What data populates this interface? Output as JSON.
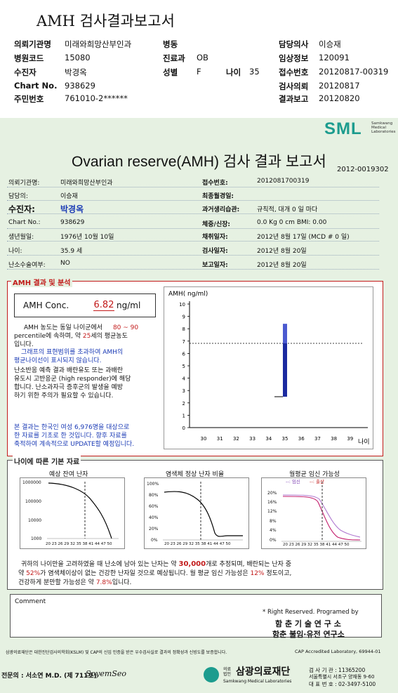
{
  "top_title": "AMH 검사결과보고서",
  "header": {
    "rows": [
      [
        {
          "label": "의뢰기관명",
          "value": "미래와희망산부인과"
        },
        {
          "label": "병동",
          "value": ""
        },
        {
          "label": "담당의사",
          "value": "이승재"
        }
      ],
      [
        {
          "label": "병원코드",
          "value": "15080"
        },
        {
          "label": "진료과",
          "value": "OB"
        },
        {
          "label": "임상정보",
          "value": "120091"
        }
      ],
      [
        {
          "label": "수진자",
          "value": "박경옥"
        },
        {
          "label": "성별",
          "value": "F"
        },
        {
          "label": "접수번호",
          "value": "20120817-00319"
        }
      ],
      [
        {
          "label": "Chart No.",
          "value": "938629"
        },
        {
          "label": "",
          "value": ""
        },
        {
          "label": "검사의뢰",
          "value": "20120817"
        }
      ],
      [
        {
          "label": "주민번호",
          "value": "761010-2******"
        },
        {
          "label": "",
          "value": ""
        },
        {
          "label": "결과보고",
          "value": "20120820"
        }
      ]
    ],
    "age_label": "나이",
    "age_value": "35"
  },
  "report": {
    "logo": "SML",
    "logo_sub": [
      "Samkwang",
      "Medical",
      "Laboratories"
    ],
    "title": "Ovarian reserve(AMH) 검사 결과 보고서",
    "report_no": "2012-0019302",
    "left_info": [
      {
        "label": "의뢰기관명:",
        "value": "미래와희망산부인과"
      },
      {
        "label": "담당의:",
        "value": "이승재"
      },
      {
        "label": "수진자:",
        "value": "박경옥"
      },
      {
        "label": "Chart No.:",
        "value": "938629"
      },
      {
        "label": "생년월일:",
        "value": "1976년 10월 10일"
      },
      {
        "label": "나이:",
        "value": "35.9 세"
      },
      {
        "label": "난소수술여부:",
        "value": "NO"
      }
    ],
    "right_info": [
      {
        "label": "접수번호:",
        "value": "2012081700319"
      },
      {
        "label": "최종월경일:",
        "value": ""
      },
      {
        "label": "과거생리습관:",
        "value": "규칙적, 대개    0 일 마다"
      },
      {
        "label": "체중/신장:",
        "value": "0.0 Kg     0 cm   BMI:   0.00"
      },
      {
        "label": "채취일자:",
        "value": "2012년 8월 17일   (MCD # 0 일)"
      },
      {
        "label": "검사일자:",
        "value": "2012년 8월 20일"
      },
      {
        "label": "보고일자:",
        "value": "2012년 8월 20일"
      }
    ],
    "amh_section_label": "AMH 결과 및 분석",
    "amh_conc_label": "AMH Conc.",
    "amh_conc_value": "6.82",
    "amh_conc_unit": "ng/ml",
    "analysis": {
      "p1_a": "AMH 농도는 동일 나이군에서",
      "p1_range": "80 ~ 90",
      "p1_b": "percentile에 속하며, 약",
      "p1_age": "25",
      "p1_c": "세의 평균농도",
      "p1_d": "입니다.",
      "p2_1": "그래프의 표현범위를 초과하여 AMH의",
      "p2_2": "평균나이선이 표시되지 않습니다.",
      "p3": [
        "난소반응 예측 결과 배란유도 또는 과배란",
        "유도시 고반응군 (high responder)에 해당",
        "합니다. 난소과자극 증후군의 발생을 예방",
        "하기 위한 주의가 필요할 수 있습니다."
      ],
      "p4": [
        "본 결과는 한국인 여성 6,976명을 대상으로",
        "한 자료를 기초로 한 것입니다. 향후 자료를",
        "축적하여 계속적으로 UPDATE할 예정입니다."
      ]
    },
    "age_section_label": "나이에 따른 기본 자료",
    "mini_titles": [
      "예상 잔여 난자",
      "염색체 정상 난자 비율",
      "월평균 임신 가능성"
    ],
    "mini1_ticks": [
      "1000000",
      "100000",
      "10000",
      "1000"
    ],
    "mini2_ticks": [
      "100%",
      "80%",
      "60%",
      "40%",
      "20%",
      "0%"
    ],
    "mini3_ticks": [
      "20%",
      "16%",
      "12%",
      "8%",
      "4%",
      "0%"
    ],
    "mini_xticks": "20 23 26 29 32 35 38 41 44 47 50",
    "mini3_legend_a": "--: 임신",
    "mini3_legend_b": "--: 출산",
    "summary": {
      "l1_a": "귀하의 나이만을 고려하였을 때 난소에 남아 있는 난자는 약",
      "l1_num": "30,000",
      "l1_b": "개로 추정되며, 배란되는 난자 중",
      "l2_a": "약",
      "l2_pct": "52%",
      "l2_b": "가 염색체이상이 없는 건강한 난자일 것으로 예상됩니다. 월 평균 임신 가능성은",
      "l2_pct2": "12%",
      "l2_c": "정도이고,",
      "l3_a": "건강하게 분만할 가능성은 약",
      "l3_pct": "7.8%",
      "l3_b": "입니다."
    },
    "comment_label": "Comment",
    "programmed_by": "* Right Reserved. Programed by",
    "inst1": "함 춘 기 술 연 구 소",
    "inst2": "함춘 불임·유전 연구소",
    "foot_note": "삼광의료재단은 대한진단검사의학회(KSLM) 및 CAP의 신임 인증을 받은 우수검사실로 결과의 정확성과 신빙도를 보증합니다.",
    "cap": "CAP  Accredited  Laboratory,  69944-01",
    "doctor": "전문의 : 서소연 M.D. (제 711호)",
    "signature": "SoyemSeo",
    "lab_name": "삼광의료재단",
    "lab_prefix": "의료 법인",
    "lab_en": "Samkwang Medical Laboratories",
    "lab_info1": "검 사 기 관 : 11365200",
    "lab_info2": "서울특별시 서초구 양재동 9-60",
    "lab_info3": "대 표 번 호 : 02-3497-5100"
  },
  "chart_data": {
    "type": "bar",
    "ylabel": "AMH( ng/ml)",
    "xlabel": "나이",
    "x_ticks": [
      30,
      31,
      32,
      33,
      34,
      35,
      36,
      37,
      38,
      39
    ],
    "y_ticks": [
      0,
      1,
      2,
      3,
      4,
      5,
      6,
      7,
      8,
      9,
      10
    ],
    "ylim": [
      0,
      10
    ],
    "patient_age": 35.9,
    "patient_value": 6.82,
    "bar_x": 35,
    "bar_range": [
      2.5,
      8.4
    ],
    "bar_core": [
      2.5,
      6.82
    ],
    "marker_value": 2.5,
    "colors": {
      "bar": "#1b2aa0",
      "bar_light": "#4b5ad0"
    }
  }
}
